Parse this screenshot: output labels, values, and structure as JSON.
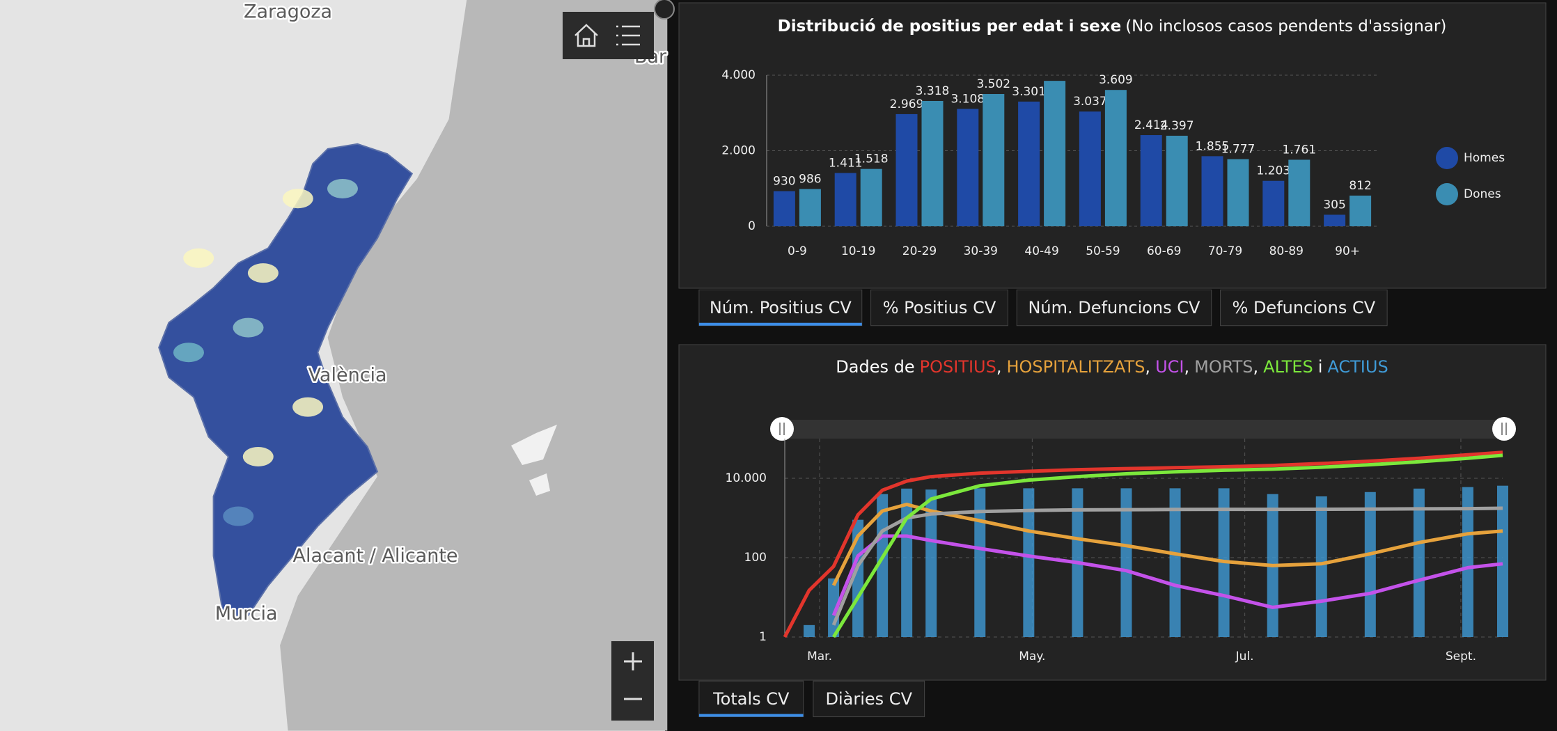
{
  "map": {
    "labels": [
      "Zaragoza",
      "València",
      "Alacant / Alicante",
      "Murcia",
      "Bar"
    ]
  },
  "tabs_top": {
    "items": [
      "Núm. Positius CV",
      "% Positius CV",
      "Núm. Defuncions CV",
      "% Defuncions CV"
    ],
    "active": 0
  },
  "tabs_bottom": {
    "items": [
      "Totals CV",
      "Diàries CV"
    ],
    "active": 0
  },
  "chart_data": [
    {
      "type": "bar",
      "title": "Distribució de positius per edat i sexe",
      "subtitle": "(No inclosos casos pendents d'assignar)",
      "categories": [
        "0-9",
        "10-19",
        "20-29",
        "30-39",
        "40-49",
        "50-59",
        "60-69",
        "70-79",
        "80-89",
        "90+"
      ],
      "series": [
        {
          "name": "Homes",
          "color": "#1f4aa6",
          "values": [
            930,
            1411,
            2969,
            3108,
            3301,
            3037,
            2414,
            1855,
            1203,
            305
          ],
          "value_labels": [
            "930",
            "1.411",
            "2.969",
            "3.108",
            "3.301",
            "3.037",
            "2.414",
            "1.855",
            "1.203",
            "305"
          ]
        },
        {
          "name": "Dones",
          "color": "#3a8db2",
          "values": [
            986,
            1518,
            3318,
            3502,
            3850,
            3609,
            2397,
            1777,
            1761,
            812
          ],
          "value_labels": [
            "986",
            "1.518",
            "3.318",
            "3.502",
            null,
            "3.609",
            "2.397",
            "1.777",
            "1.761",
            "812"
          ]
        }
      ],
      "ylim": [
        0,
        4000
      ],
      "yticks": [
        0,
        {
          "value": 2000,
          "label": "2.000"
        },
        {
          "value": 4000,
          "label": "4.000"
        }
      ],
      "grid": true,
      "legend": "right"
    },
    {
      "type": "line",
      "title_prefix": "Dades de",
      "title_separator": ",",
      "title_conjunction": "i",
      "x": [
        0,
        7,
        14,
        21,
        28,
        35,
        42,
        56,
        70,
        84,
        98,
        112,
        126,
        140,
        154,
        168,
        182,
        196,
        206
      ],
      "xlim": [
        0,
        206
      ],
      "xticks": [
        {
          "value": 10,
          "label": "Mar."
        },
        {
          "value": 71,
          "label": "May."
        },
        {
          "value": 132,
          "label": "Jul."
        },
        {
          "value": 194,
          "label": "Sept."
        }
      ],
      "ylim": [
        1,
        100000
      ],
      "yticks": [
        1,
        100,
        {
          "value": 10000,
          "label": "10.000"
        }
      ],
      "log_scale": true,
      "grid": true,
      "series": [
        {
          "name": "POSITIUS",
          "color": "#e2352c",
          "values": [
            1,
            15,
            60,
            1200,
            5000,
            8500,
            11000,
            13500,
            15000,
            16500,
            17500,
            18500,
            19500,
            21000,
            23500,
            27000,
            32000,
            39000,
            45000
          ]
        },
        {
          "name": "HOSPITALITZATS",
          "color": "#e6a23c",
          "values": [
            null,
            null,
            20,
            350,
            1500,
            2200,
            1500,
            850,
            470,
            300,
            200,
            125,
            80,
            63,
            70,
            125,
            240,
            400,
            470
          ]
        },
        {
          "name": "UCI",
          "color": "#c452ea",
          "values": [
            null,
            null,
            3.5,
            110,
            350,
            350,
            270,
            170,
            110,
            75,
            47,
            20,
            11,
            5.6,
            8,
            12.6,
            27,
            56,
            70
          ]
        },
        {
          "name": "MORTS",
          "color": "#a0a0a0",
          "values": [
            null,
            null,
            2,
            63,
            470,
            1000,
            1260,
            1450,
            1550,
            1600,
            1620,
            1640,
            1650,
            1650,
            1660,
            1680,
            1700,
            1720,
            1760
          ]
        },
        {
          "name": "ALTES",
          "color": "#7ce83c",
          "values": [
            null,
            null,
            1,
            10,
            100,
            1000,
            3000,
            6500,
            9000,
            11000,
            13000,
            14500,
            16000,
            17000,
            19000,
            22000,
            26000,
            32000,
            38000
          ]
        },
        {
          "name": "ACTIUS",
          "color": "#3f9ad6",
          "style": "bar",
          "values": [
            null,
            2,
            30,
            900,
            4000,
            5500,
            5200,
            5600,
            5600,
            5600,
            5600,
            5600,
            5600,
            4000,
            3500,
            4500,
            5500,
            6000,
            6500
          ]
        }
      ]
    }
  ]
}
